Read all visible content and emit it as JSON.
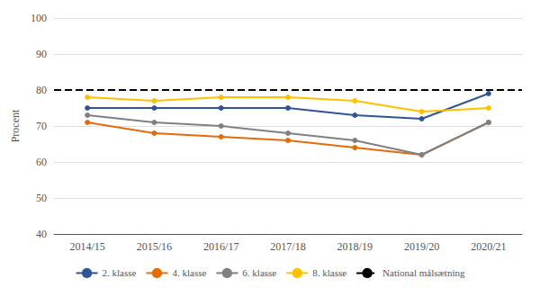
{
  "chart_data": {
    "type": "line",
    "categories": [
      "2014/15",
      "2015/16",
      "2016/17",
      "2017/18",
      "2018/19",
      "2019/20",
      "2020/21"
    ],
    "ylabel": "Procent",
    "series": [
      {
        "name": "2. klasse",
        "color": "#2F5597",
        "values": [
          75,
          75,
          75,
          75,
          73,
          72,
          79
        ]
      },
      {
        "name": "4. klasse",
        "color": "#E36C09",
        "values": [
          71,
          68,
          67,
          66,
          64,
          62,
          71
        ]
      },
      {
        "name": "6. klasse",
        "color": "#808080",
        "values": [
          73,
          71,
          70,
          68,
          66,
          62,
          71
        ]
      },
      {
        "name": "8. klasse",
        "color": "#FFC000",
        "values": [
          78,
          77,
          78,
          78,
          77,
          74,
          75
        ]
      }
    ],
    "target": {
      "name": "National målsætning",
      "value": 80,
      "color": "#000000",
      "line_style": "dashed"
    },
    "ylim": [
      40,
      100
    ],
    "yticks": [
      40,
      50,
      60,
      70,
      80,
      90,
      100
    ],
    "grid": true,
    "legend": "bottom",
    "marker": "circle"
  }
}
